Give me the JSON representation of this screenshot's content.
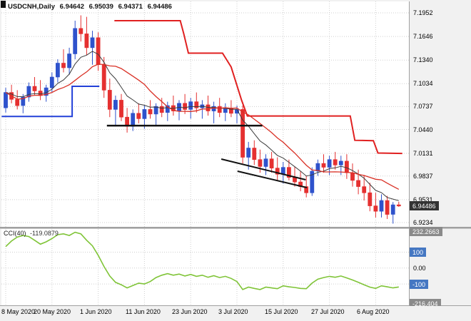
{
  "header": {
    "symbol": "USDCNH,Daily",
    "open": "6.94642",
    "high": "6.95039",
    "low": "6.94371",
    "close": "6.94486"
  },
  "price_axis": {
    "labels": [
      "7.1952",
      "7.1646",
      "7.1340",
      "7.1034",
      "7.0737",
      "7.0440",
      "7.0131",
      "6.9837",
      "6.9531",
      "6.9234"
    ],
    "current": "6.94486"
  },
  "time_axis": {
    "labels": [
      "8 May 2020",
      "20 May 2020",
      "1 Jun 2020",
      "11 Jun 2020",
      "23 Jun 2020",
      "3 Jul 2020",
      "15 Jul 2020",
      "27 Jul 2020",
      "6 Aug 2020"
    ]
  },
  "cci_panel": {
    "name": "CCI(40)",
    "value": "-119.0879",
    "max": "232.2663",
    "upper_level": "100",
    "zero": "0.00",
    "lower_level": "-100",
    "min": "-216.404"
  },
  "colors": {
    "bull": "#2e52cc",
    "bear": "#e53030",
    "ma_fast": "#3c3c3c",
    "ma_slow": "#d93025",
    "step_blue": "#2240d8",
    "step_red": "#e02020",
    "trendline": "#111111",
    "cci_line": "#7fc437",
    "grid": "#cfcfcf",
    "frame": "#a0a0a0",
    "panel_bg": "#ffffff",
    "axis_bg": "#f1f1f1",
    "badge_dark": "#333333",
    "badge_blue": "#4577c2",
    "badge_gray": "#8a8a8a"
  },
  "chart_data": {
    "type": "candlestick",
    "symbol": "USDCNH",
    "timeframe": "Daily",
    "ylim": [
      6.9234,
      7.1952
    ],
    "y_ticks": [
      7.1952,
      7.1646,
      7.134,
      7.1034,
      7.0737,
      7.044,
      7.0131,
      6.9837,
      6.9531,
      6.9234
    ],
    "x_tick_indices": [
      0,
      8,
      16,
      24,
      32,
      40,
      48,
      56,
      64
    ],
    "x_tick_labels": [
      "8 May 2020",
      "20 May 2020",
      "1 Jun 2020",
      "11 Jun 2020",
      "23 Jun 2020",
      "3 Jul 2020",
      "15 Jul 2020",
      "27 Jul 2020",
      "6 Aug 2020"
    ],
    "candles_ohlc": [
      [
        7.072,
        7.098,
        7.066,
        7.092
      ],
      [
        7.092,
        7.102,
        7.078,
        7.083
      ],
      [
        7.083,
        7.095,
        7.07,
        7.075
      ],
      [
        7.075,
        7.09,
        7.065,
        7.086
      ],
      [
        7.086,
        7.105,
        7.08,
        7.1
      ],
      [
        7.1,
        7.112,
        7.088,
        7.094
      ],
      [
        7.094,
        7.108,
        7.082,
        7.088
      ],
      [
        7.088,
        7.102,
        7.08,
        7.098
      ],
      [
        7.098,
        7.118,
        7.092,
        7.112
      ],
      [
        7.112,
        7.135,
        7.105,
        7.13
      ],
      [
        7.13,
        7.148,
        7.118,
        7.124
      ],
      [
        7.124,
        7.15,
        7.115,
        7.142
      ],
      [
        7.142,
        7.185,
        7.135,
        7.175
      ],
      [
        7.175,
        7.192,
        7.158,
        7.168
      ],
      [
        7.168,
        7.19,
        7.14,
        7.15
      ],
      [
        7.15,
        7.172,
        7.128,
        7.163
      ],
      [
        7.163,
        7.17,
        7.12,
        7.128
      ],
      [
        7.128,
        7.138,
        7.085,
        7.095
      ],
      [
        7.095,
        7.11,
        7.06,
        7.07
      ],
      [
        7.07,
        7.088,
        7.048,
        7.082
      ],
      [
        7.082,
        7.09,
        7.055,
        7.06
      ],
      [
        7.06,
        7.072,
        7.04,
        7.048
      ],
      [
        7.048,
        7.07,
        7.042,
        7.065
      ],
      [
        7.065,
        7.078,
        7.052,
        7.058
      ],
      [
        7.058,
        7.075,
        7.045,
        7.07
      ],
      [
        7.07,
        7.082,
        7.058,
        7.064
      ],
      [
        7.064,
        7.078,
        7.048,
        7.074
      ],
      [
        7.074,
        7.085,
        7.06,
        7.066
      ],
      [
        7.066,
        7.08,
        7.055,
        7.075
      ],
      [
        7.075,
        7.088,
        7.062,
        7.068
      ],
      [
        7.068,
        7.082,
        7.056,
        7.078
      ],
      [
        7.078,
        7.09,
        7.064,
        7.07
      ],
      [
        7.07,
        7.085,
        7.058,
        7.08
      ],
      [
        7.08,
        7.092,
        7.066,
        7.072
      ],
      [
        7.072,
        7.082,
        7.058,
        7.076
      ],
      [
        7.076,
        7.088,
        7.062,
        7.068
      ],
      [
        7.068,
        7.08,
        7.052,
        7.074
      ],
      [
        7.074,
        7.085,
        7.06,
        7.066
      ],
      [
        7.066,
        7.078,
        7.055,
        7.072
      ],
      [
        7.072,
        7.082,
        7.06,
        7.065
      ],
      [
        7.065,
        7.075,
        7.052,
        7.07
      ],
      [
        7.07,
        7.075,
        7.0,
        7.008
      ],
      [
        7.008,
        7.028,
        6.992,
        7.02
      ],
      [
        7.02,
        7.03,
        6.998,
        7.005
      ],
      [
        7.005,
        7.018,
        6.988,
        6.996
      ],
      [
        6.996,
        7.012,
        6.985,
        7.006
      ],
      [
        7.006,
        7.015,
        6.988,
        6.994
      ],
      [
        6.994,
        7.008,
        6.978,
        6.986
      ],
      [
        6.986,
        7.002,
        6.974,
        6.995
      ],
      [
        6.995,
        7.005,
        6.978,
        6.982
      ],
      [
        6.982,
        6.996,
        6.97,
        6.976
      ],
      [
        6.976,
        6.99,
        6.964,
        6.97
      ],
      [
        6.97,
        6.984,
        6.956,
        6.962
      ],
      [
        6.962,
        6.995,
        6.958,
        6.99
      ],
      [
        6.99,
        7.005,
        6.984,
        7.0
      ],
      [
        7.0,
        7.012,
        6.988,
        6.995
      ],
      [
        6.995,
        7.01,
        6.985,
        7.005
      ],
      [
        7.005,
        7.015,
        6.992,
        6.998
      ],
      [
        6.998,
        7.01,
        6.985,
        7.003
      ],
      [
        7.003,
        7.012,
        6.98,
        6.988
      ],
      [
        6.988,
        7.0,
        6.97,
        6.978
      ],
      [
        6.978,
        6.992,
        6.96,
        6.97
      ],
      [
        6.97,
        6.985,
        6.952,
        6.962
      ],
      [
        6.962,
        6.975,
        6.938,
        6.945
      ],
      [
        6.945,
        6.962,
        6.93,
        6.938
      ],
      [
        6.938,
        6.96,
        6.93,
        6.952
      ],
      [
        6.952,
        6.958,
        6.928,
        6.934
      ],
      [
        6.934,
        6.95,
        6.922,
        6.9464
      ],
      [
        6.94642,
        6.95039,
        6.94371,
        6.94486
      ]
    ],
    "moving_averages": [
      {
        "type": "ema",
        "period": 8,
        "color": "ma_fast",
        "width": 1
      },
      {
        "type": "sma",
        "period": 13,
        "color": "ma_slow",
        "width": 1.3
      }
    ],
    "overlays": {
      "blue_step_line": [
        [
          -0.7,
          7.061
        ],
        [
          11.5,
          7.061
        ],
        [
          11.5,
          7.1
        ],
        [
          16.2,
          7.1
        ]
      ],
      "red_step_line": [
        [
          18.8,
          7.185
        ],
        [
          30.2,
          7.185
        ],
        [
          30.8,
          7.168
        ],
        [
          31.6,
          7.143
        ],
        [
          37.5,
          7.143
        ],
        [
          39.0,
          7.125
        ],
        [
          40.8,
          7.082
        ],
        [
          41.8,
          7.0615
        ],
        [
          59.6,
          7.0615
        ],
        [
          60.4,
          7.03
        ],
        [
          63.6,
          7.0295
        ],
        [
          64.4,
          7.0135
        ],
        [
          68.6,
          7.013
        ]
      ],
      "trendlines": [
        {
          "points": [
            [
              17.5,
              7.049
            ],
            [
              44.4,
              7.049
            ]
          ],
          "width": 2.5
        },
        {
          "points": [
            [
              37.3,
              7.0057
            ],
            [
              51.9,
              6.9789
            ]
          ],
          "width": 2
        },
        {
          "points": [
            [
              40.1,
              6.99
            ],
            [
              52.1,
              6.9687
            ]
          ],
          "width": 2
        }
      ]
    },
    "indicator": {
      "name": "CCI",
      "period": 40,
      "display": "CCI(40)",
      "last_value": -119.0879,
      "levels": [
        100,
        -100
      ],
      "range": [
        232.2663,
        -216.404
      ],
      "values": [
        135,
        170,
        195,
        205,
        198,
        175,
        150,
        165,
        185,
        210,
        215,
        205,
        225,
        215,
        175,
        140,
        80,
        10,
        -50,
        -90,
        -105,
        -125,
        -110,
        -95,
        -100,
        -85,
        -60,
        -45,
        -35,
        -45,
        -38,
        -50,
        -40,
        -52,
        -45,
        -58,
        -48,
        -60,
        -52,
        -65,
        -85,
        -135,
        -120,
        -128,
        -135,
        -120,
        -125,
        -130,
        -112,
        -118,
        -122,
        -128,
        -130,
        -95,
        -70,
        -60,
        -52,
        -58,
        -50,
        -62,
        -75,
        -90,
        -105,
        -120,
        -128,
        -112,
        -118,
        -125,
        -119.0879
      ]
    }
  }
}
